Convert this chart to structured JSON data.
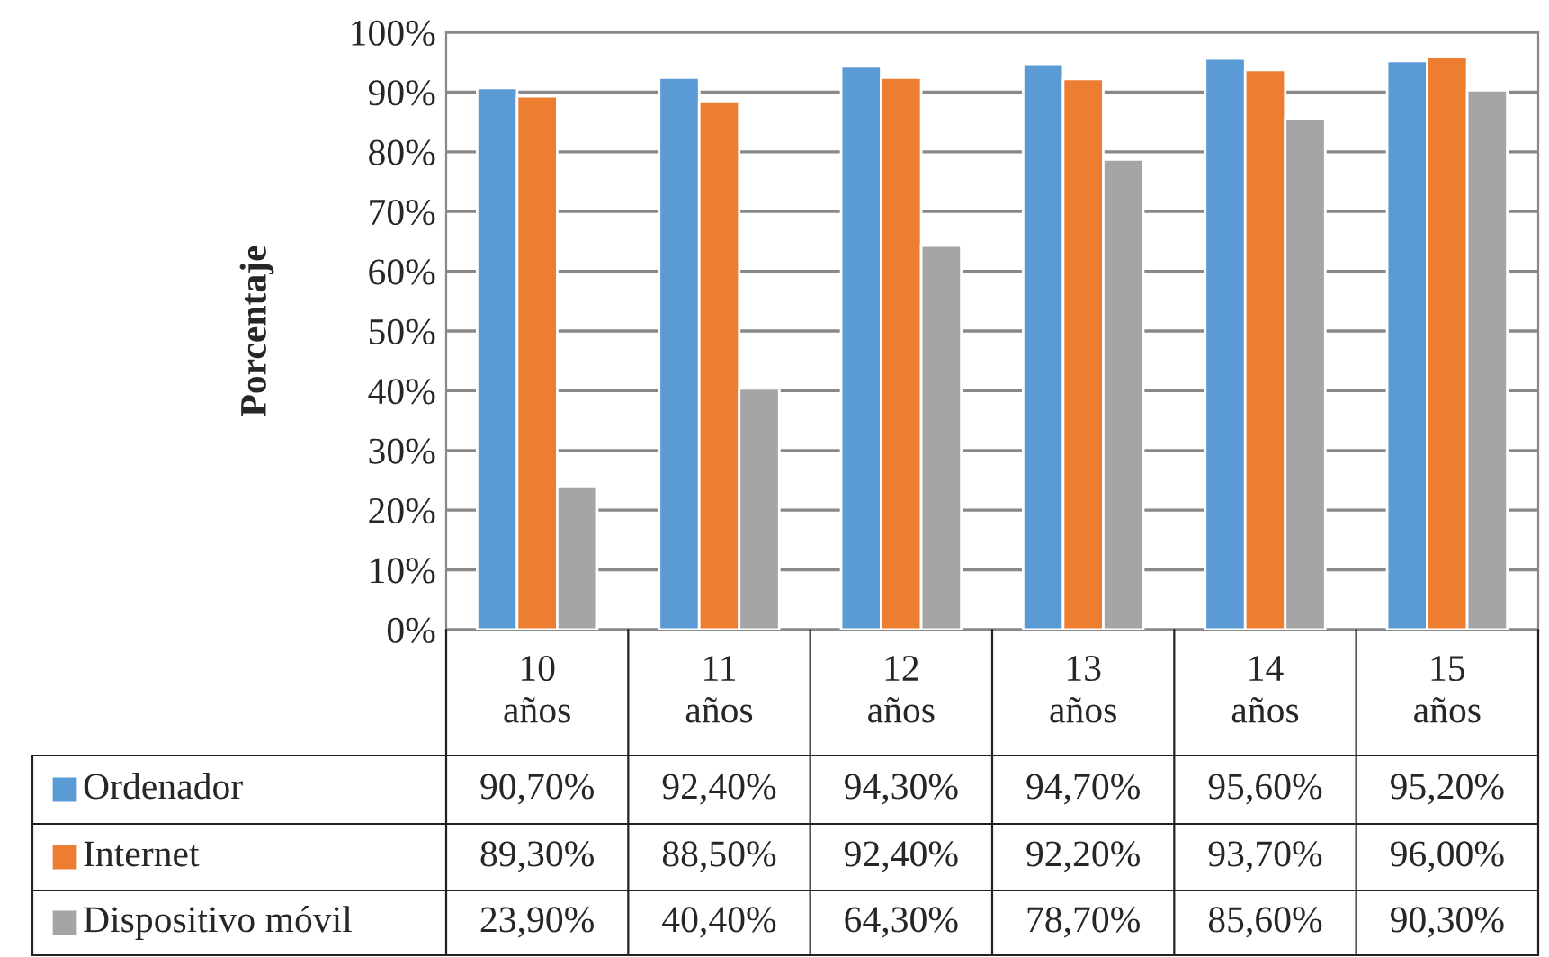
{
  "chart_data": {
    "type": "bar",
    "ylabel": "Porcentaje",
    "categories": [
      "10\naños",
      "11\naños",
      "12\naños",
      "13\naños",
      "14\naños",
      "15\naños"
    ],
    "series": [
      {
        "name": "Ordenador",
        "color": "#5b9bd5",
        "values": [
          90.7,
          92.4,
          94.3,
          94.7,
          95.6,
          95.2
        ],
        "value_labels": [
          "90,70%",
          "92,40%",
          "94,30%",
          "94,70%",
          "95,60%",
          "95,20%"
        ]
      },
      {
        "name": "Internet",
        "color": "#ed7d31",
        "values": [
          89.3,
          88.5,
          92.4,
          92.2,
          93.7,
          96.0
        ],
        "value_labels": [
          "89,30%",
          "88,50%",
          "92,40%",
          "92,20%",
          "93,70%",
          "96,00%"
        ]
      },
      {
        "name": "Dispositivo móvil",
        "color": "#a5a5a5",
        "values": [
          23.9,
          40.4,
          64.3,
          78.7,
          85.6,
          90.3
        ],
        "value_labels": [
          "23,90%",
          "40,40%",
          "64,30%",
          "78,70%",
          "85,60%",
          "90,30%"
        ]
      }
    ],
    "ylim": [
      0,
      100
    ],
    "yticks": [
      {
        "value": 0,
        "label": "0%"
      },
      {
        "value": 10,
        "label": "10%"
      },
      {
        "value": 20,
        "label": "20%"
      },
      {
        "value": 30,
        "label": "30%"
      },
      {
        "value": 40,
        "label": "40%"
      },
      {
        "value": 50,
        "label": "50%"
      },
      {
        "value": 60,
        "label": "60%"
      },
      {
        "value": 70,
        "label": "70%"
      },
      {
        "value": 80,
        "label": "80%"
      },
      {
        "value": 90,
        "label": "90%"
      },
      {
        "value": 100,
        "label": "100%"
      }
    ],
    "grid": "y",
    "legend": "bottom"
  }
}
